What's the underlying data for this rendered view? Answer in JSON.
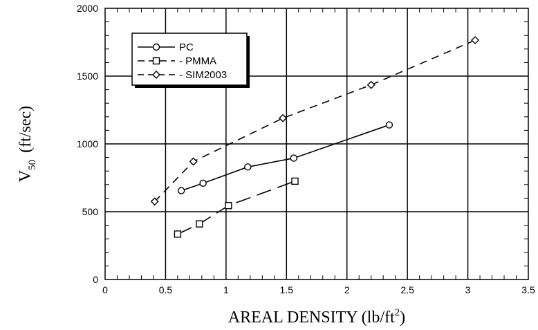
{
  "chart_data": {
    "type": "line",
    "xlabel": "AREAL DENSITY  (lb/ft",
    "xlabel_sup": "2",
    "xlabel_end": ")",
    "ylabel": "V",
    "ylabel_sub": "50",
    "ylabel_unit": "(ft/sec)",
    "xlim": [
      0,
      3.5
    ],
    "ylim": [
      0,
      2000
    ],
    "xticks": [
      "0",
      "0.5",
      "1",
      "1.5",
      "2",
      "2.5",
      "3",
      "3.5"
    ],
    "yticks": [
      "0",
      "500",
      "1000",
      "1500",
      "2000"
    ],
    "grid": true,
    "legend_position": "top-left",
    "series": [
      {
        "name": "PC",
        "marker": "circle",
        "line": "solid",
        "x": [
          0.63,
          0.81,
          1.18,
          1.56,
          2.35
        ],
        "y": [
          655,
          710,
          830,
          895,
          1140
        ]
      },
      {
        "name": "PMMA",
        "marker": "square",
        "line": "long-dash",
        "x": [
          0.6,
          0.78,
          1.02,
          1.57
        ],
        "y": [
          335,
          410,
          545,
          725
        ]
      },
      {
        "name": "SIM2003",
        "marker": "diamond",
        "line": "dash",
        "x": [
          0.41,
          0.73,
          1.47,
          2.2,
          3.06
        ],
        "y": [
          575,
          870,
          1190,
          1435,
          1765
        ]
      }
    ]
  }
}
